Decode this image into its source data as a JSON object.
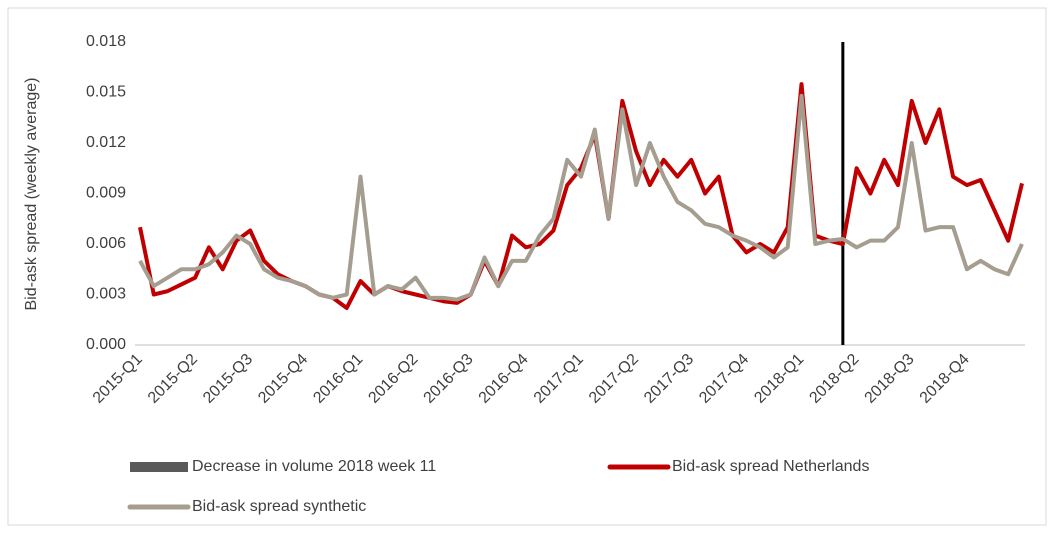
{
  "chart_data": {
    "type": "line",
    "ylabel": "Bid-ask spread (weekly average)",
    "categories": [
      "2015-Q1",
      null,
      null,
      null,
      "2015-Q2",
      null,
      null,
      null,
      "2015-Q3",
      null,
      null,
      null,
      "2015-Q4",
      null,
      null,
      null,
      "2016-Q1",
      null,
      null,
      null,
      "2016-Q2",
      null,
      null,
      null,
      "2016-Q3",
      null,
      null,
      null,
      "2016-Q4",
      null,
      null,
      null,
      "2017-Q1",
      null,
      null,
      null,
      "2017-Q2",
      null,
      null,
      null,
      "2017-Q3",
      null,
      null,
      null,
      "2017-Q4",
      null,
      null,
      null,
      "2018-Q1",
      null,
      null,
      null,
      "2018-Q2",
      null,
      null,
      null,
      "2018-Q3",
      null,
      null,
      null,
      "2018-Q4",
      null,
      null,
      null,
      null
    ],
    "series": [
      {
        "name": "Decrease in volume 2018 week 11",
        "color": "#000000",
        "kind": "bar",
        "values": [
          null,
          null,
          null,
          null,
          null,
          null,
          null,
          null,
          null,
          null,
          null,
          null,
          null,
          null,
          null,
          null,
          null,
          null,
          null,
          null,
          null,
          null,
          null,
          null,
          null,
          null,
          null,
          null,
          null,
          null,
          null,
          null,
          null,
          null,
          null,
          null,
          null,
          null,
          null,
          null,
          null,
          null,
          null,
          null,
          null,
          null,
          null,
          null,
          null,
          null,
          null,
          0.018,
          null,
          null,
          null,
          null,
          null,
          null,
          null,
          null,
          null,
          null,
          null,
          null,
          null
        ]
      },
      {
        "name": "Bid-ask spread Netherlands",
        "color": "#c00000",
        "values": [
          0.007,
          0.003,
          0.0032,
          0.0036,
          0.004,
          0.0058,
          0.0045,
          0.0062,
          0.0068,
          0.005,
          0.0042,
          0.0038,
          0.0035,
          0.003,
          0.0028,
          0.0022,
          0.0038,
          0.003,
          0.0035,
          0.0032,
          0.003,
          0.0028,
          0.0026,
          0.0025,
          0.003,
          0.005,
          0.0035,
          0.0065,
          0.0058,
          0.006,
          0.0068,
          0.0095,
          0.0105,
          0.0125,
          0.0075,
          0.0145,
          0.0115,
          0.0095,
          0.011,
          0.01,
          0.011,
          0.009,
          0.01,
          0.0065,
          0.0055,
          0.006,
          0.0055,
          0.007,
          0.0155,
          0.0065,
          0.0062,
          0.006,
          0.0105,
          0.009,
          0.011,
          0.0095,
          0.0145,
          0.012,
          0.014,
          0.01,
          0.0095,
          0.0098,
          0.008,
          0.0062,
          0.0096
        ]
      },
      {
        "name": "Bid-ask spread synthetic",
        "color": "#a59d8f",
        "values": [
          0.005,
          0.0035,
          0.004,
          0.0045,
          0.0045,
          0.0048,
          0.0055,
          0.0065,
          0.006,
          0.0045,
          0.004,
          0.0038,
          0.0035,
          0.003,
          0.0028,
          0.003,
          0.01,
          0.003,
          0.0035,
          0.0033,
          0.004,
          0.0028,
          0.0028,
          0.0027,
          0.003,
          0.0052,
          0.0035,
          0.005,
          0.005,
          0.0065,
          0.0075,
          0.011,
          0.01,
          0.0128,
          0.0075,
          0.014,
          0.0095,
          0.012,
          0.01,
          0.0085,
          0.008,
          0.0072,
          0.007,
          0.0065,
          0.0062,
          0.0058,
          0.0052,
          0.0058,
          0.0148,
          0.006,
          0.0062,
          0.0063,
          0.0058,
          0.0062,
          0.0062,
          0.007,
          0.012,
          0.0068,
          0.007,
          0.007,
          0.0045,
          0.005,
          0.0045,
          0.0042,
          0.006
        ]
      }
    ],
    "ylim": [
      0,
      0.018
    ],
    "yticks": [
      {
        "value": 0,
        "label": "0.000"
      },
      0.003,
      0.006,
      0.009,
      0.012,
      0.015,
      0.018
    ],
    "grid": false,
    "legend": "bottom"
  }
}
